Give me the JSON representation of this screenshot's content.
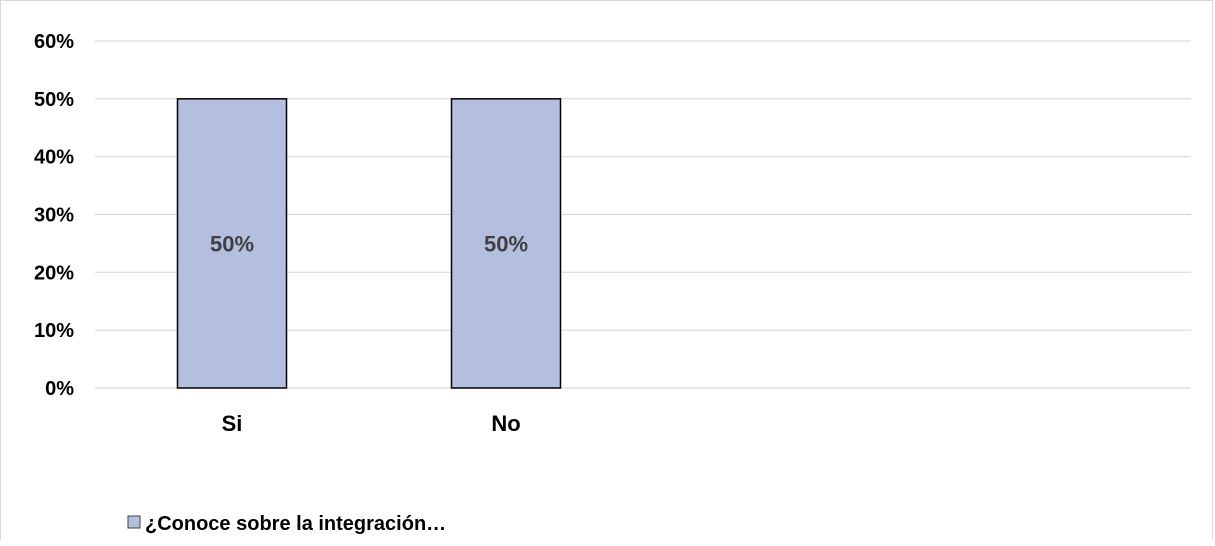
{
  "chart_data": {
    "type": "bar",
    "categories": [
      "Si",
      "No"
    ],
    "series": [
      {
        "name": "¿Conoce sobre la integración…",
        "values": [
          50,
          50
        ],
        "color": "#b4bfe0"
      }
    ],
    "data_labels": [
      "50%",
      "50%"
    ],
    "yticks": [
      "0%",
      "10%",
      "20%",
      "30%",
      "40%",
      "50%",
      "60%"
    ],
    "ylim": [
      0,
      60
    ],
    "grid": true,
    "legend_position": "bottom-left",
    "colors": {
      "bar_fill": "#b4bfe0",
      "bar_stroke": "#000000",
      "grid": "#d9d9d9"
    }
  }
}
